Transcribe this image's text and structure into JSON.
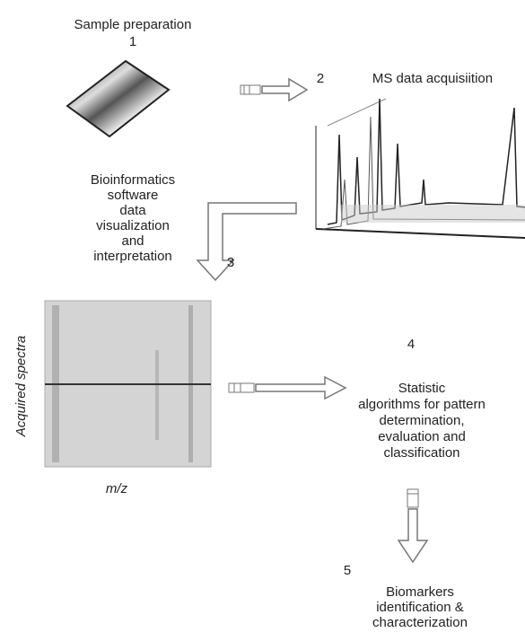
{
  "steps": [
    {
      "number": "1",
      "lines": [
        "Sample preparation"
      ]
    },
    {
      "number": "2",
      "lines": [
        "MS data acquisiition"
      ]
    },
    {
      "number": "3",
      "lines": [
        "Bioinformatics",
        "software",
        "data",
        "visualization",
        "and",
        "interpretation"
      ]
    },
    {
      "number": "4",
      "lines": [
        "Statistic",
        "algorithms for pattern",
        "determination,",
        "evaluation and",
        "classification"
      ]
    },
    {
      "number": "5",
      "lines": [
        "Biomarkers",
        "identification &",
        "characterization"
      ]
    }
  ],
  "heatmap": {
    "y_label": "Acquired spectra",
    "x_label": "m/z"
  }
}
